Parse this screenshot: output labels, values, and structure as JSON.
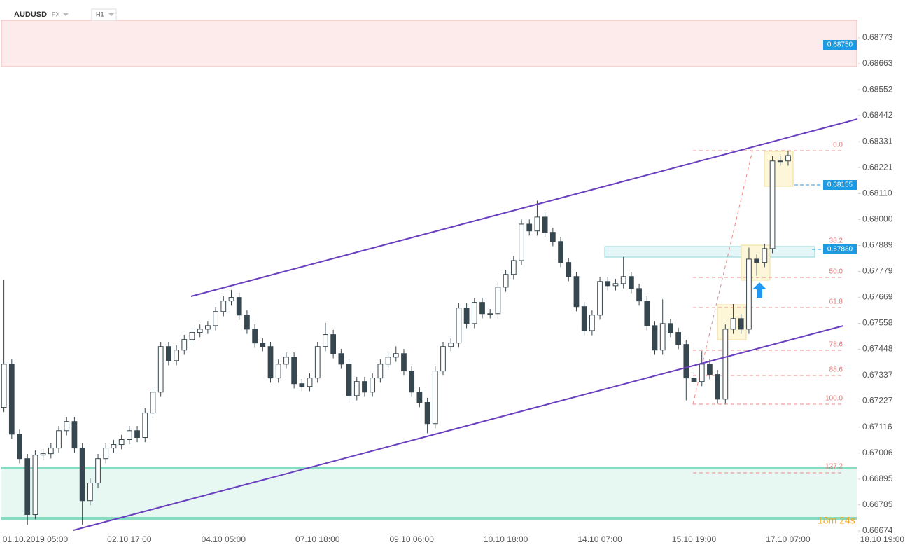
{
  "header": {
    "symbol": "AUDUSD",
    "market": "FX",
    "timeframe": "H1"
  },
  "price_tags": [
    "0.68750",
    "0.68155",
    "0.67880"
  ],
  "fib_labels": [
    "0.0",
    "38.2",
    "50.0",
    "61.8",
    "78.6",
    "88.6",
    "100.0",
    "127.2"
  ],
  "timer": "18m 24s",
  "chart_data": {
    "type": "candlestick",
    "up_color": "#ffffff",
    "down_color": "#37474f",
    "edge_color": "#37474f",
    "categories": [
      null,
      null,
      null,
      null,
      "01.10.2019  05:00",
      null,
      null,
      null,
      null,
      null,
      null,
      null,
      null,
      null,
      null,
      null,
      "02.10  17:00",
      null,
      null,
      null,
      null,
      null,
      null,
      null,
      null,
      null,
      null,
      null,
      "04.10  05:00",
      null,
      null,
      null,
      null,
      null,
      null,
      null,
      null,
      null,
      null,
      null,
      "07.10  18:00",
      null,
      null,
      null,
      null,
      null,
      null,
      null,
      null,
      null,
      null,
      null,
      "09.10  06:00",
      null,
      null,
      null,
      null,
      null,
      null,
      null,
      null,
      null,
      null,
      null,
      "10.10  18:00",
      null,
      null,
      null,
      null,
      null,
      null,
      null,
      null,
      null,
      null,
      null,
      "14.10  07:00",
      null,
      null,
      null,
      null,
      null,
      null,
      null,
      null,
      null,
      null,
      null,
      "15.10  19:00",
      null,
      null,
      null,
      null,
      null,
      null,
      null,
      null,
      null,
      null,
      null,
      "17.10  07:00",
      null,
      null,
      null,
      null,
      null,
      null,
      null,
      null,
      null,
      null,
      null,
      "18.10  19:00"
    ],
    "open": [
      0.672,
      0.67384,
      0.67086,
      0.66982,
      0.66744,
      0.66997,
      0.67003,
      0.67027,
      0.67101,
      0.6714,
      0.67027,
      0.66803,
      0.66878,
      0.66982,
      0.67027,
      0.67042,
      0.67063,
      0.67101,
      0.67072,
      0.67176,
      0.67265,
      0.67459,
      0.67399,
      0.67444,
      0.67489,
      0.67519,
      0.67533,
      0.67548,
      0.67608,
      0.67653,
      0.67668,
      0.67593,
      0.67533,
      0.67474,
      0.67459,
      0.67325,
      0.67384,
      0.67414,
      0.67301,
      0.67289,
      0.67325,
      0.67459,
      0.6751,
      0.67429,
      0.67384,
      0.6725,
      0.6731,
      0.67265,
      0.67325,
      0.67384,
      0.67414,
      0.67429,
      0.67355,
      0.67265,
      0.67221,
      0.67131,
      0.67355,
      0.67459,
      0.67474,
      0.67623,
      0.67557,
      0.67647,
      0.67599,
      0.67599,
      0.67712,
      0.67766,
      0.67825,
      0.6798,
      0.67951,
      0.6801,
      0.67945,
      0.67906,
      0.67817,
      0.67757,
      0.67629,
      0.67527,
      0.67593,
      0.67736,
      0.67718,
      0.67727,
      0.67757,
      0.67706,
      0.67653,
      0.67548,
      0.67444,
      0.67557,
      0.67519,
      0.67468,
      0.67325,
      0.6731,
      0.67384,
      0.6734,
      0.67235,
      0.67533,
      0.67578,
      0.67533,
      0.67831,
      0.67817,
      0.67876,
      0.68249,
      0.68249,
      null,
      null,
      null,
      null,
      null,
      null,
      null,
      null,
      null,
      null,
      null,
      null
    ],
    "high": [
      0.67742,
      0.67404,
      0.67106,
      0.67002,
      0.67017,
      0.67023,
      0.67047,
      0.67121,
      0.6716,
      0.6716,
      0.67047,
      0.66898,
      0.67002,
      0.67047,
      0.67062,
      0.67083,
      0.67121,
      0.67121,
      0.67196,
      0.67285,
      0.67479,
      0.67479,
      0.67464,
      0.67509,
      0.67539,
      0.67553,
      0.67568,
      0.67628,
      0.67673,
      0.677,
      0.67688,
      0.67613,
      0.67553,
      0.67494,
      0.67479,
      0.67404,
      0.67434,
      0.67434,
      0.67321,
      0.67345,
      0.67479,
      0.6756,
      0.6753,
      0.67449,
      0.67404,
      0.6733,
      0.6733,
      0.67345,
      0.67404,
      0.67434,
      0.6746,
      0.67449,
      0.67375,
      0.67285,
      0.67241,
      0.67375,
      0.67479,
      0.67494,
      0.67643,
      0.67643,
      0.67667,
      0.67667,
      0.67619,
      0.67732,
      0.67786,
      0.67845,
      0.68,
      0.68,
      0.6808,
      0.6803,
      0.67965,
      0.67926,
      0.67837,
      0.67777,
      0.67649,
      0.67613,
      0.67756,
      0.67756,
      0.67747,
      0.6784,
      0.67777,
      0.67726,
      0.67673,
      0.67568,
      0.6766,
      0.67577,
      0.67539,
      0.67488,
      0.67345,
      0.6744,
      0.67404,
      0.6736,
      0.67553,
      0.6764,
      0.67598,
      0.6788,
      0.67851,
      0.67896,
      0.68269,
      0.68269,
      0.6829,
      null,
      null,
      null,
      null,
      null,
      null,
      null,
      null,
      null,
      null,
      null,
      null
    ],
    "low": [
      0.6718,
      0.67066,
      0.66962,
      0.667,
      0.66724,
      0.66977,
      0.66983,
      0.67007,
      0.67081,
      0.67007,
      0.667,
      0.66783,
      0.66858,
      0.66962,
      0.67007,
      0.67022,
      0.67043,
      0.67052,
      0.67052,
      0.67156,
      0.67245,
      0.67379,
      0.67379,
      0.67424,
      0.67469,
      0.67499,
      0.67513,
      0.67528,
      0.67588,
      0.67633,
      0.67573,
      0.67513,
      0.67454,
      0.67439,
      0.67305,
      0.67305,
      0.67364,
      0.67281,
      0.67269,
      0.67269,
      0.67305,
      0.67439,
      0.67409,
      0.67364,
      0.6723,
      0.6723,
      0.67245,
      0.67245,
      0.67305,
      0.67364,
      0.67394,
      0.67335,
      0.67245,
      0.67201,
      0.6709,
      0.67111,
      0.67335,
      0.67439,
      0.67454,
      0.67537,
      0.67537,
      0.67579,
      0.67579,
      0.67579,
      0.67692,
      0.67746,
      0.67805,
      0.67931,
      0.67931,
      0.67925,
      0.67886,
      0.67797,
      0.67737,
      0.67609,
      0.67507,
      0.67507,
      0.67573,
      0.67698,
      0.67698,
      0.67707,
      0.67686,
      0.67633,
      0.67528,
      0.67424,
      0.67424,
      0.67499,
      0.67448,
      0.6723,
      0.6729,
      0.6729,
      0.6732,
      0.67215,
      0.67215,
      0.67513,
      0.67513,
      0.67513,
      0.6776,
      0.67797,
      0.67856,
      0.68229,
      0.68229,
      null,
      null,
      null,
      null,
      null,
      null,
      null,
      null,
      null,
      null,
      null,
      null
    ],
    "close": [
      0.67384,
      0.67086,
      0.66982,
      0.66744,
      0.66997,
      0.67003,
      0.67027,
      0.67101,
      0.6714,
      0.67027,
      0.66803,
      0.66878,
      0.66982,
      0.67027,
      0.67042,
      0.67063,
      0.67101,
      0.67072,
      0.67176,
      0.67265,
      0.67459,
      0.67399,
      0.67444,
      0.67489,
      0.67519,
      0.67533,
      0.67548,
      0.67608,
      0.67653,
      0.67668,
      0.67593,
      0.67533,
      0.67474,
      0.67459,
      0.67325,
      0.67384,
      0.67414,
      0.67301,
      0.67289,
      0.67325,
      0.67459,
      0.6751,
      0.67429,
      0.67384,
      0.6725,
      0.6731,
      0.67265,
      0.67325,
      0.67384,
      0.67414,
      0.67429,
      0.67355,
      0.67265,
      0.67221,
      0.67131,
      0.67355,
      0.67459,
      0.67474,
      0.67623,
      0.67557,
      0.67647,
      0.67599,
      0.67599,
      0.67712,
      0.67766,
      0.67825,
      0.6798,
      0.67951,
      0.6801,
      0.67945,
      0.67906,
      0.67817,
      0.67757,
      0.67629,
      0.67527,
      0.67593,
      0.67736,
      0.67718,
      0.67727,
      0.67757,
      0.67706,
      0.67653,
      0.67548,
      0.67444,
      0.67557,
      0.67519,
      0.67468,
      0.67325,
      0.6731,
      0.67384,
      0.6734,
      0.67235,
      0.67533,
      0.67578,
      0.67533,
      0.67831,
      0.67817,
      0.67876,
      0.68249,
      0.68249,
      0.68272,
      null,
      null,
      null,
      null,
      null,
      null,
      null,
      null,
      null,
      null,
      null,
      null
    ],
    "ylim": [
      0.66668,
      0.68934
    ],
    "yticks": [
      0.68773,
      0.68663,
      0.68552,
      0.68442,
      0.68331,
      0.68221,
      {
        "value": 0.6811,
        "label": "0.68110"
      },
      {
        "value": 0.68,
        "label": "0.68000"
      },
      0.67889,
      0.67779,
      0.67669,
      0.67558,
      0.67448,
      0.67337,
      0.67227,
      0.67116,
      0.67006,
      0.66895,
      0.66785,
      0.66674
    ]
  }
}
